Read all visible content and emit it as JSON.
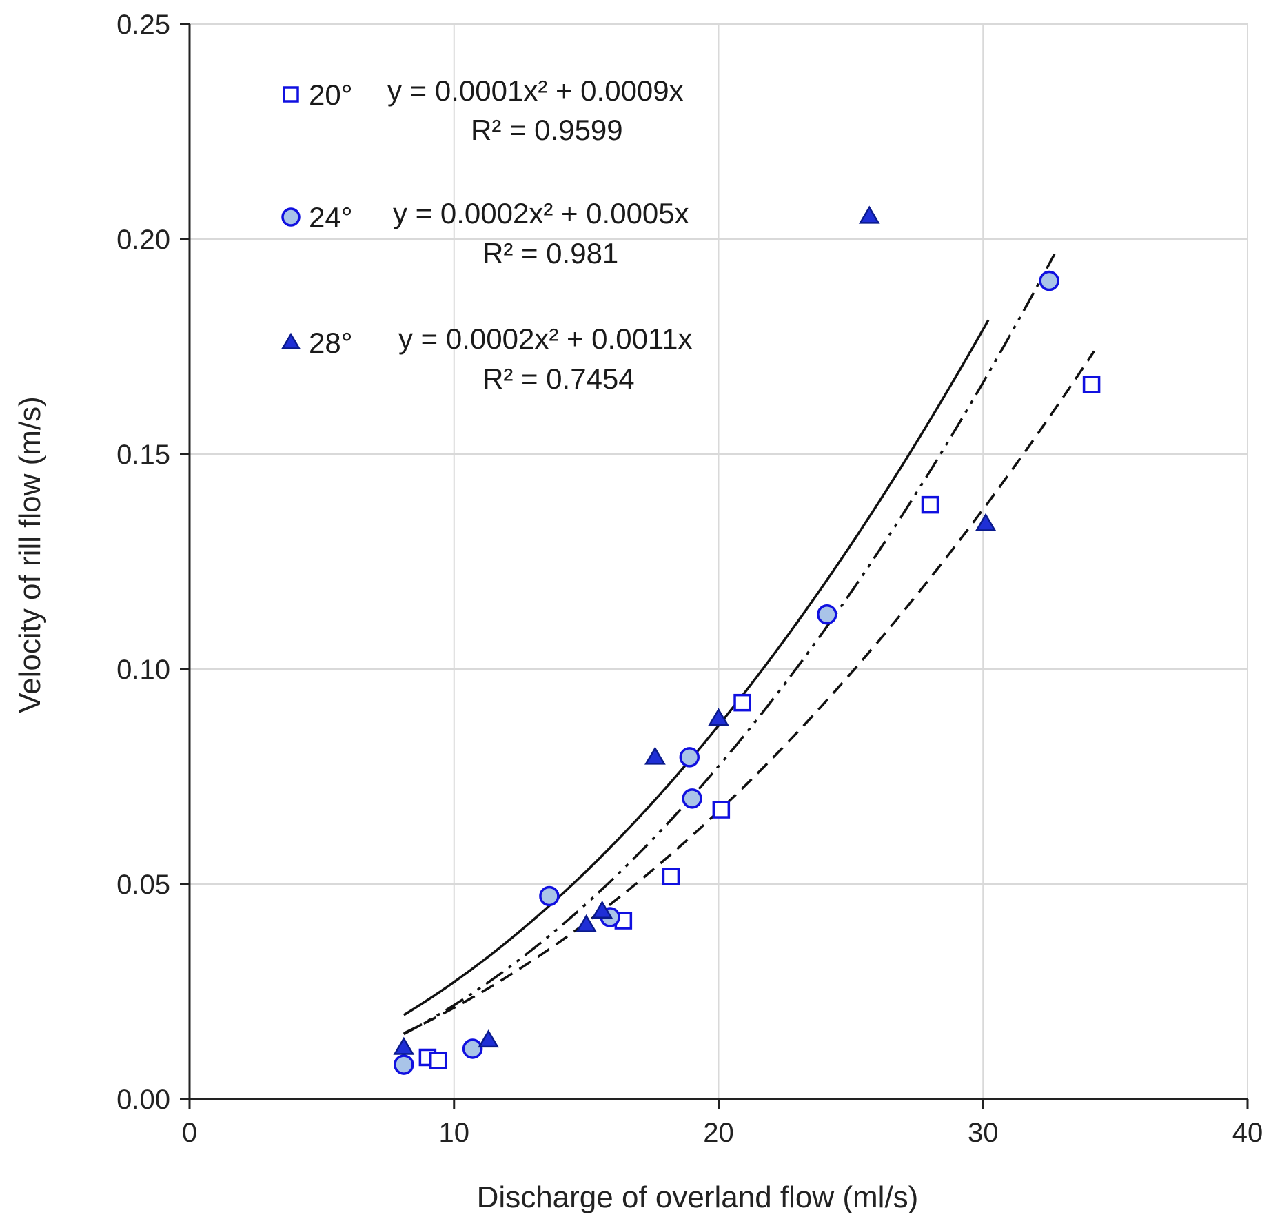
{
  "chart_data": {
    "type": "scatter",
    "title": "",
    "xlabel": "Discharge of overland flow (ml/s)",
    "ylabel": "Velocity of rill flow (m/s)",
    "xlim": [
      0,
      40
    ],
    "ylim": [
      0,
      0.25
    ],
    "x_ticks": [
      0,
      10,
      20,
      30,
      40
    ],
    "y_ticks": [
      0,
      0.05,
      0.1,
      0.15,
      0.2,
      0.25
    ],
    "x_tick_labels": [
      "0",
      "10",
      "20",
      "30",
      "40"
    ],
    "y_tick_labels": [
      "0.00",
      "0.05",
      "0.10",
      "0.15",
      "0.20",
      "0.25"
    ],
    "grid": true,
    "series": [
      {
        "name": "20°",
        "marker": "square",
        "equation": "y = 0.0001x² + 0.0009x",
        "r2": "R² = 0.9599",
        "points": [
          {
            "x": 9.0,
            "y": 0.0097
          },
          {
            "x": 9.4,
            "y": 0.009
          },
          {
            "x": 16.4,
            "y": 0.0415
          },
          {
            "x": 18.2,
            "y": 0.0518
          },
          {
            "x": 20.1,
            "y": 0.0673
          },
          {
            "x": 20.9,
            "y": 0.0922
          },
          {
            "x": 28.0,
            "y": 0.1382
          },
          {
            "x": 34.1,
            "y": 0.1662
          }
        ],
        "fit": {
          "a": 0.0001224,
          "b": 0.0009,
          "xmin": 8.1,
          "xmax": 34.2,
          "style": "dashed"
        }
      },
      {
        "name": "24°",
        "marker": "circle",
        "equation": "y = 0.0002x² + 0.0005x",
        "r2": "R² = 0.981",
        "points": [
          {
            "x": 8.1,
            "y": 0.008
          },
          {
            "x": 10.7,
            "y": 0.0117
          },
          {
            "x": 13.6,
            "y": 0.0472
          },
          {
            "x": 15.9,
            "y": 0.0423
          },
          {
            "x": 18.9,
            "y": 0.0795
          },
          {
            "x": 19.0,
            "y": 0.0699
          },
          {
            "x": 24.1,
            "y": 0.1127
          },
          {
            "x": 32.5,
            "y": 0.1903
          }
        ],
        "fit": {
          "a": 0.0001685,
          "b": 0.0005,
          "xmin": 8.1,
          "xmax": 32.7,
          "style": "dashdotdot"
        }
      },
      {
        "name": "28°",
        "marker": "triangle",
        "equation": "y = 0.0002x² + 0.0011x",
        "r2": "R² = 0.7454",
        "points": [
          {
            "x": 8.1,
            "y": 0.012
          },
          {
            "x": 11.3,
            "y": 0.0137
          },
          {
            "x": 15.0,
            "y": 0.0405
          },
          {
            "x": 15.6,
            "y": 0.0437
          },
          {
            "x": 17.6,
            "y": 0.0795
          },
          {
            "x": 20.0,
            "y": 0.0885
          },
          {
            "x": 25.7,
            "y": 0.2053
          },
          {
            "x": 30.1,
            "y": 0.1338
          }
        ],
        "fit": {
          "a": 0.0001622,
          "b": 0.0011,
          "xmin": 8.1,
          "xmax": 30.2,
          "style": "solid"
        }
      }
    ]
  },
  "colors": {
    "marker_stroke": "#1010e0",
    "circle_fill": "#a9c4e8",
    "triangle_fill": "#1f2fd6",
    "square_fill": "#ffffff",
    "fit_line": "#111111",
    "grid": "#d9d9d9",
    "axis": "#222222"
  }
}
